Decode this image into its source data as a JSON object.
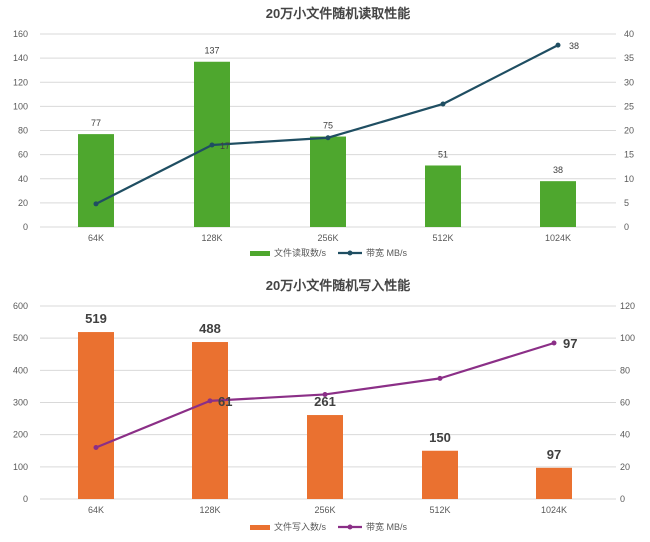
{
  "chart_data": [
    {
      "type": "bar",
      "title": "20万小文件随机读取性能",
      "categories": [
        "64K",
        "128K",
        "256K",
        "512K",
        "1024K"
      ],
      "bar_series": {
        "name": "文件读取数/s",
        "values": [
          77,
          137,
          75,
          51,
          38
        ],
        "color": "#4ea72e"
      },
      "line_series": {
        "name": "带宽 MB/s",
        "values": [
          4.8,
          17,
          18.5,
          25.5,
          37.7
        ],
        "labels": [
          "",
          "17",
          "",
          "",
          "38"
        ],
        "color": "#1f4e62"
      },
      "ylim": [
        0,
        160
      ],
      "yticks": [
        0,
        20,
        40,
        60,
        80,
        100,
        120,
        140,
        160
      ],
      "y2lim": [
        0,
        40
      ],
      "y2ticks": [
        0,
        5,
        10,
        15,
        20,
        25,
        30,
        35,
        40
      ],
      "grid": true,
      "legend": "bottom"
    },
    {
      "type": "bar",
      "title": "20万小文件随机写入性能",
      "categories": [
        "64K",
        "128K",
        "256K",
        "512K",
        "1024K"
      ],
      "bar_series": {
        "name": "文件写入数/s",
        "values": [
          519,
          488,
          261,
          150,
          97
        ],
        "color": "#ea7130"
      },
      "line_series": {
        "name": "带宽 MB/s",
        "values": [
          32,
          61,
          65,
          75,
          97
        ],
        "labels": [
          "",
          "61",
          "",
          "",
          "97"
        ],
        "color": "#8b2f87"
      },
      "ylim": [
        0,
        600
      ],
      "yticks": [
        0,
        100,
        200,
        300,
        400,
        500,
        600
      ],
      "y2lim": [
        0,
        120
      ],
      "y2ticks": [
        0,
        20,
        40,
        60,
        80,
        100,
        120
      ],
      "grid": true,
      "legend": "bottom"
    }
  ]
}
